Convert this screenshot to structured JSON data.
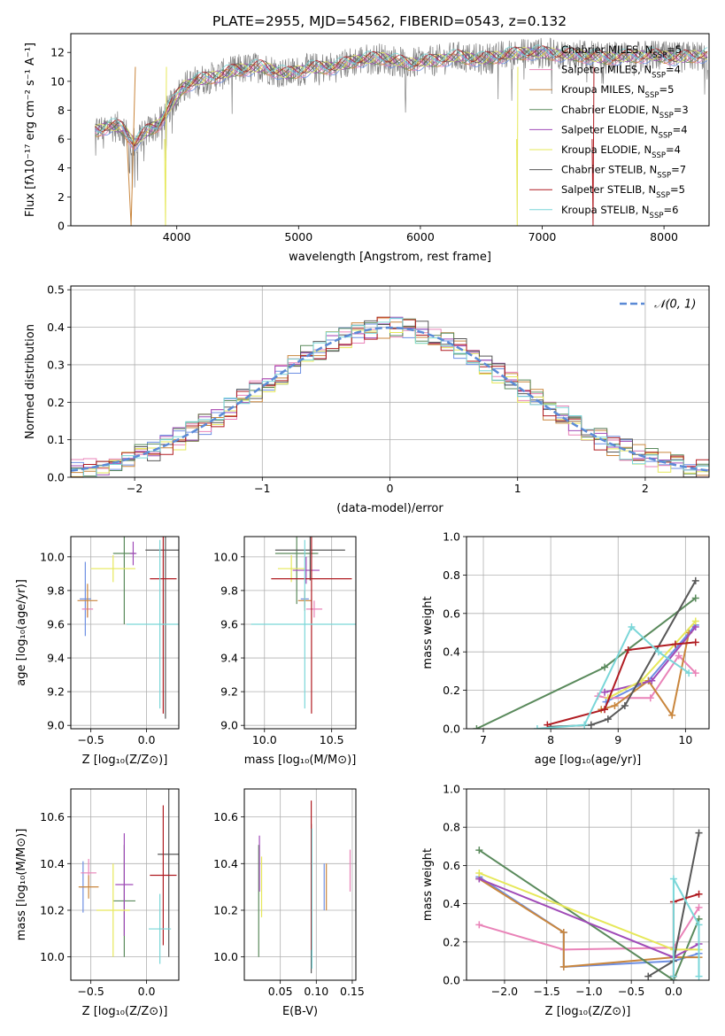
{
  "figure_title": "PLATE=2955, MJD=54562, FIBERID=0543, z=0.132",
  "colors": {
    "Chabrier MILES": "#6d8fe3",
    "Salpeter MILES": "#e983b8",
    "Kroupa MILES": "#c9863d",
    "Chabrier ELODIE": "#5a8a5c",
    "Salpeter ELODIE": "#a04bb8",
    "Kroupa ELODIE": "#e6e85a",
    "Chabrier STELIB": "#585858",
    "Salpeter STELIB": "#b01c22",
    "Kroupa STELIB": "#7ad6d8",
    "normal_curve": "#5b8ad6"
  },
  "chart_data": [
    {
      "id": "spectrum",
      "type": "line",
      "xlabel": "wavelength [Angstrom, rest frame]",
      "ylabel": "Flux [fλ10⁻¹⁷ erg cm⁻² s⁻¹ A⁻¹]",
      "xlim": [
        3130,
        8370
      ],
      "ylim": [
        0,
        13.3
      ],
      "xticks": [
        4000,
        5000,
        6000,
        7000,
        8000
      ],
      "yticks": [
        0,
        2,
        4,
        6,
        8,
        10,
        12
      ],
      "grid": false,
      "legend_position": "upper-right",
      "legend": [
        "Chabrier MILES, N_SSP=5",
        "Salpeter MILES, N_SSP=4",
        "Kroupa MILES, N_SSP=5",
        "Chabrier ELODIE, N_SSP=3",
        "Salpeter ELODIE, N_SSP=4",
        "Kroupa ELODIE, N_SSP=4",
        "Chabrier STELIB, N_SSP=7",
        "Salpeter STELIB, N_SSP=5",
        "Kroupa STELIB, N_SSP=6"
      ],
      "data_continuum": {
        "x": [
          3350,
          3450,
          3550,
          3650,
          3750,
          3850,
          3950,
          4050,
          4150,
          4300,
          4500,
          4700,
          4900,
          5100,
          5300,
          5500,
          5700,
          5900,
          6100,
          6300,
          6500,
          6700,
          6900,
          7100,
          7300,
          7500,
          7700,
          7900,
          8100,
          8300
        ],
        "y": [
          6.6,
          6.9,
          6.8,
          5.7,
          6.5,
          7.0,
          8.3,
          9.6,
          10.0,
          10.3,
          10.8,
          11.0,
          10.5,
          10.9,
          11.0,
          11.5,
          11.6,
          11.2,
          11.4,
          11.7,
          11.5,
          11.8,
          12.0,
          11.9,
          11.8,
          11.6,
          11.7,
          11.8,
          11.6,
          11.8
        ]
      }
    },
    {
      "id": "residuals",
      "type": "step",
      "xlabel": "(data-model)/error",
      "ylabel": "Normed distribution",
      "xlim": [
        -2.5,
        2.5
      ],
      "ylim": [
        0,
        0.51
      ],
      "xticks": [
        -2,
        -1,
        0,
        1,
        2
      ],
      "yticks": [
        0.0,
        0.1,
        0.2,
        0.3,
        0.4,
        0.5
      ],
      "grid": true,
      "legend_position": "upper-right",
      "legend": [
        "𝒩(0, 1)"
      ],
      "bin_width": 0.1
    },
    {
      "id": "age_vs_Z",
      "type": "errorbar",
      "xlabel": "Z [log₁₀(Z/Z⊙)]",
      "ylabel": "age  [log₁₀(age/yr)]",
      "xlim": [
        -0.68,
        0.29
      ],
      "ylim": [
        8.98,
        10.12
      ],
      "xticks": [
        -0.5,
        0.0
      ],
      "yticks": [
        9.0,
        9.2,
        9.4,
        9.6,
        9.8,
        10.0
      ],
      "grid": true,
      "points": [
        {
          "model": "Chabrier MILES",
          "x": -0.55,
          "xerr": 0.05,
          "y": 9.75,
          "yerr": 0.22
        },
        {
          "model": "Salpeter MILES",
          "x": -0.53,
          "xerr": 0.05,
          "y": 9.69,
          "yerr": 0.05
        },
        {
          "model": "Kroupa MILES",
          "x": -0.53,
          "xerr": 0.09,
          "y": 9.74,
          "yerr": 0.1
        },
        {
          "model": "Chabrier ELODIE",
          "x": -0.2,
          "xerr": 0.1,
          "y": 10.02,
          "yerr": 0.42
        },
        {
          "model": "Salpeter ELODIE",
          "x": -0.12,
          "xerr": 0.03,
          "y": 10.02,
          "yerr": 0.07
        },
        {
          "model": "Kroupa ELODIE",
          "x": -0.3,
          "xerr": 0.2,
          "y": 9.93,
          "yerr": 0.08
        },
        {
          "model": "Chabrier STELIB",
          "x": 0.17,
          "xerr": 0.18,
          "y": 10.04,
          "yerr": 1.0
        },
        {
          "model": "Salpeter STELIB",
          "x": 0.15,
          "xerr": 0.12,
          "y": 9.87,
          "yerr": 0.8
        },
        {
          "model": "Kroupa STELIB",
          "x": 0.12,
          "xerr": 0.3,
          "y": 9.6,
          "yerr": 0.5
        }
      ]
    },
    {
      "id": "age_vs_mass",
      "type": "errorbar",
      "xlabel": "mass [log₁₀(M/M⊙)]",
      "ylabel": "",
      "xlim": [
        9.85,
        10.68
      ],
      "ylim": [
        8.98,
        10.12
      ],
      "xticks": [
        10.0,
        10.5
      ],
      "yticks": [
        9.0,
        9.2,
        9.4,
        9.6,
        9.8,
        10.0
      ],
      "grid": true,
      "points": [
        {
          "model": "Chabrier MILES",
          "x": 10.3,
          "xerr": 0.03,
          "y": 9.75,
          "yerr": 0.05
        },
        {
          "model": "Salpeter MILES",
          "x": 10.37,
          "xerr": 0.06,
          "y": 9.69,
          "yerr": 0.05
        },
        {
          "model": "Kroupa MILES",
          "x": 10.3,
          "xerr": 0.05,
          "y": 9.74,
          "yerr": 0.06
        },
        {
          "model": "Chabrier ELODIE",
          "x": 10.24,
          "xerr": 0.16,
          "y": 10.02,
          "yerr": 0.3
        },
        {
          "model": "Salpeter ELODIE",
          "x": 10.31,
          "xerr": 0.1,
          "y": 9.92,
          "yerr": 0.08
        },
        {
          "model": "Kroupa ELODIE",
          "x": 10.2,
          "xerr": 0.1,
          "y": 9.93,
          "yerr": 0.08
        },
        {
          "model": "Chabrier STELIB",
          "x": 10.34,
          "xerr": 0.26,
          "y": 10.04,
          "yerr": 0.18
        },
        {
          "model": "Salpeter STELIB",
          "x": 10.35,
          "xerr": 0.3,
          "y": 9.87,
          "yerr": 0.8
        },
        {
          "model": "Kroupa STELIB",
          "x": 10.3,
          "xerr": 0.4,
          "y": 9.6,
          "yerr": 0.5
        }
      ]
    },
    {
      "id": "weight_vs_age",
      "type": "line",
      "xlabel": "age  [log₁₀(age/yr)]",
      "ylabel": "mass weight",
      "xlim": [
        6.75,
        10.35
      ],
      "ylim": [
        0,
        1.0
      ],
      "xticks": [
        7,
        8,
        9,
        10
      ],
      "yticks": [
        0.0,
        0.2,
        0.4,
        0.6,
        0.8,
        1.0
      ],
      "grid": true,
      "series": [
        {
          "model": "Chabrier MILES",
          "x": [
            8.82,
            9.45,
            10.15
          ],
          "y": [
            0.14,
            0.25,
            0.54
          ]
        },
        {
          "model": "Salpeter MILES",
          "x": [
            8.7,
            8.85,
            9.48,
            9.9,
            10.15
          ],
          "y": [
            0.17,
            0.16,
            0.16,
            0.38,
            0.29
          ]
        },
        {
          "model": "Kroupa MILES",
          "x": [
            8.75,
            8.95,
            9.45,
            9.8,
            10.05
          ],
          "y": [
            0.1,
            0.12,
            0.25,
            0.07,
            0.5
          ]
        },
        {
          "model": "Chabrier ELODIE",
          "x": [
            6.9,
            8.8,
            10.15
          ],
          "y": [
            0.0,
            0.32,
            0.68
          ]
        },
        {
          "model": "Salpeter ELODIE",
          "x": [
            8.8,
            9.5,
            10.15
          ],
          "y": [
            0.19,
            0.25,
            0.53
          ]
        },
        {
          "model": "Kroupa ELODIE",
          "x": [
            8.85,
            9.35,
            10.15
          ],
          "y": [
            0.16,
            0.25,
            0.56
          ]
        },
        {
          "model": "Chabrier STELIB",
          "x": [
            8.0,
            8.6,
            8.85,
            9.1,
            10.15
          ],
          "y": [
            0.01,
            0.02,
            0.05,
            0.12,
            0.77
          ]
        },
        {
          "model": "Salpeter STELIB",
          "x": [
            7.95,
            8.8,
            9.15,
            9.85,
            10.15
          ],
          "y": [
            0.02,
            0.1,
            0.41,
            0.44,
            0.45
          ]
        },
        {
          "model": "Kroupa STELIB",
          "x": [
            7.8,
            8.5,
            9.2,
            9.6,
            10.05
          ],
          "y": [
            0.0,
            0.02,
            0.53,
            0.4,
            0.29
          ]
        }
      ]
    },
    {
      "id": "mass_vs_Z",
      "type": "errorbar",
      "xlabel": "Z [log₁₀(Z/Z⊙)]",
      "ylabel": "mass [log₁₀(M/M⊙)]",
      "xlim": [
        -0.68,
        0.29
      ],
      "ylim": [
        9.9,
        10.72
      ],
      "xticks": [
        -0.5,
        0.0
      ],
      "yticks": [
        10.0,
        10.2,
        10.4,
        10.6
      ],
      "grid": true,
      "points": [
        {
          "model": "Chabrier MILES",
          "x": -0.57,
          "xerr": 0.03,
          "y": 10.3,
          "yerr": 0.11
        },
        {
          "model": "Salpeter MILES",
          "x": -0.52,
          "xerr": 0.07,
          "y": 10.36,
          "yerr": 0.06
        },
        {
          "model": "Kroupa MILES",
          "x": -0.52,
          "xerr": 0.09,
          "y": 10.3,
          "yerr": 0.05
        },
        {
          "model": "Chabrier ELODIE",
          "x": -0.2,
          "xerr": 0.1,
          "y": 10.24,
          "yerr": 0.24
        },
        {
          "model": "Salpeter ELODIE",
          "x": -0.2,
          "xerr": 0.08,
          "y": 10.31,
          "yerr": 0.22
        },
        {
          "model": "Kroupa ELODIE",
          "x": -0.3,
          "xerr": 0.15,
          "y": 10.2,
          "yerr": 0.2
        },
        {
          "model": "Chabrier STELIB",
          "x": 0.2,
          "xerr": 0.1,
          "y": 10.44,
          "yerr": 0.44
        },
        {
          "model": "Salpeter STELIB",
          "x": 0.15,
          "xerr": 0.12,
          "y": 10.35,
          "yerr": 0.3
        },
        {
          "model": "Kroupa STELIB",
          "x": 0.12,
          "xerr": 0.1,
          "y": 10.12,
          "yerr": 0.15
        }
      ]
    },
    {
      "id": "mass_vs_ebv",
      "type": "errorbar",
      "xlabel": "E(B-V)",
      "ylabel": "",
      "xlim": [
        0.0,
        0.155
      ],
      "ylim": [
        9.9,
        10.72
      ],
      "xticks": [
        0.05,
        0.1,
        0.15
      ],
      "yticks": [
        10.0,
        10.2,
        10.4,
        10.6
      ],
      "grid": true,
      "points": [
        {
          "model": "Chabrier MILES",
          "x": 0.111,
          "y": 10.3,
          "yerr": 0.1
        },
        {
          "model": "Salpeter MILES",
          "x": 0.147,
          "y": 10.37,
          "yerr": 0.09
        },
        {
          "model": "Kroupa MILES",
          "x": 0.114,
          "y": 10.3,
          "yerr": 0.1
        },
        {
          "model": "Chabrier ELODIE",
          "x": 0.02,
          "y": 10.24,
          "yerr": 0.24
        },
        {
          "model": "Salpeter ELODIE",
          "x": 0.021,
          "y": 10.4,
          "yerr": 0.12
        },
        {
          "model": "Kroupa ELODIE",
          "x": 0.024,
          "y": 10.3,
          "yerr": 0.13
        },
        {
          "model": "Chabrier STELIB",
          "x": 0.093,
          "y": 10.25,
          "yerr": 0.32
        },
        {
          "model": "Salpeter STELIB",
          "x": 0.093,
          "y": 10.35,
          "yerr": 0.32
        },
        {
          "model": "Kroupa STELIB",
          "x": 0.094,
          "y": 10.25,
          "yerr": 0.3
        }
      ]
    },
    {
      "id": "weight_vs_Z",
      "type": "line",
      "xlabel": "Z [log₁₀(Z/Z⊙)]",
      "ylabel": "mass weight",
      "xlim": [
        -2.45,
        0.42
      ],
      "ylim": [
        0,
        1.0
      ],
      "xticks": [
        -2.0,
        -1.5,
        -1.0,
        -0.5,
        0.0
      ],
      "yticks": [
        0.0,
        0.2,
        0.4,
        0.6,
        0.8,
        1.0
      ],
      "grid": true,
      "series": [
        {
          "model": "Chabrier MILES",
          "x": [
            -2.3,
            -1.3,
            -1.3,
            0.0,
            0.3
          ],
          "y": [
            0.54,
            0.25,
            0.07,
            0.1,
            0.14
          ]
        },
        {
          "model": "Salpeter MILES",
          "x": [
            -2.3,
            -1.3,
            0.0,
            0.3
          ],
          "y": [
            0.29,
            0.16,
            0.17,
            0.38
          ]
        },
        {
          "model": "Kroupa MILES",
          "x": [
            -2.3,
            -1.3,
            -1.3,
            0.0,
            0.3
          ],
          "y": [
            0.53,
            0.25,
            0.07,
            0.12,
            0.12
          ]
        },
        {
          "model": "Chabrier ELODIE",
          "x": [
            -2.3,
            0.0,
            0.3
          ],
          "y": [
            0.68,
            0.0,
            0.32
          ]
        },
        {
          "model": "Salpeter ELODIE",
          "x": [
            -2.3,
            0.0,
            0.3
          ],
          "y": [
            0.53,
            0.12,
            0.19
          ]
        },
        {
          "model": "Kroupa ELODIE",
          "x": [
            -2.3,
            0.0,
            0.3
          ],
          "y": [
            0.56,
            0.16,
            0.16
          ]
        },
        {
          "model": "Chabrier STELIB",
          "x": [
            -0.3,
            0.0,
            0.3
          ],
          "y": [
            0.02,
            0.1,
            0.77
          ]
        },
        {
          "model": "Salpeter STELIB",
          "x": [
            0.0,
            0.0,
            0.3
          ],
          "y": [
            0.02,
            0.41,
            0.45
          ]
        },
        {
          "model": "Kroupa STELIB",
          "x": [
            0.0,
            0.0,
            0.3,
            0.3
          ],
          "y": [
            0.02,
            0.53,
            0.29,
            0.02
          ]
        }
      ]
    }
  ]
}
